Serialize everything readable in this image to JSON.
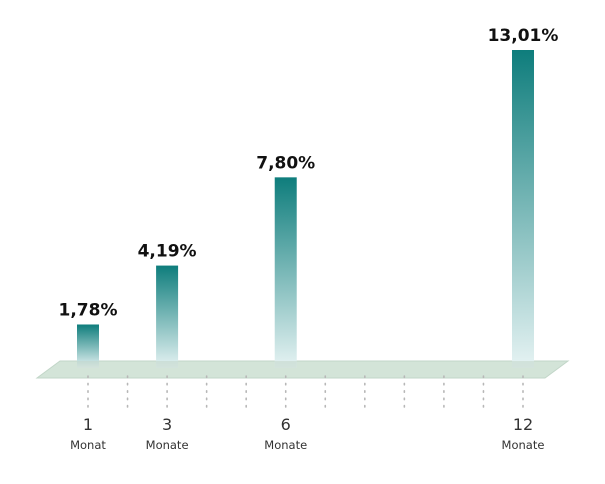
{
  "chart_data": {
    "type": "bar",
    "categories": [
      "1",
      "3",
      "6",
      "12"
    ],
    "category_sublabels": [
      "Monat",
      "Monate",
      "Monate",
      "Monate"
    ],
    "values": [
      1.78,
      4.19,
      7.8,
      13.01
    ],
    "value_labels": [
      "1,78%",
      "4,19%",
      "7,80%",
      "13,01%"
    ],
    "x_months": [
      1,
      3,
      6,
      12
    ],
    "x_range": [
      1,
      12
    ],
    "unit": "%",
    "ylim": [
      0,
      13.01
    ],
    "title": "",
    "xlabel": "",
    "ylabel": "",
    "grid": false,
    "legend": "none"
  },
  "colors": {
    "bar_top": "#0e7d7c",
    "bar_bottom": "#e6f3f3",
    "floor_fill": "#d3e4d8",
    "floor_stroke": "#c2d6c8",
    "tick_dots": "#b7b7b7",
    "value_text": "#111111",
    "axis_text": "#333333"
  }
}
